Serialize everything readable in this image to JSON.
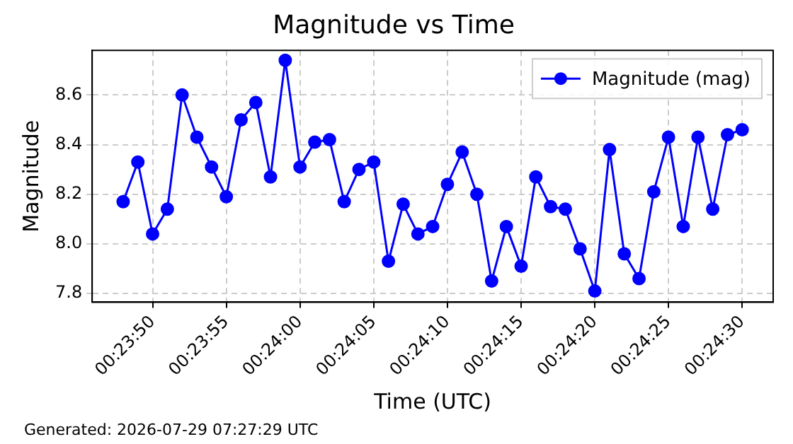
{
  "chart_data": {
    "type": "line",
    "title": "Magnitude vs Time",
    "xlabel": "Time (UTC)",
    "ylabel": "Magnitude",
    "annotations": [
      "Generated: 2026-07-29 07:27:29 UTC"
    ],
    "x": [
      0.396667,
      0.396944,
      0.397222,
      0.3975,
      0.397778,
      0.398056,
      0.398333,
      0.398611,
      0.398889,
      0.399167,
      0.399444,
      0.399722,
      0.4,
      0.400278,
      0.400556,
      0.400833,
      0.401111,
      0.401389,
      0.401667,
      0.401944,
      0.402222,
      0.4025,
      0.402778,
      0.403056,
      0.403333,
      0.403611,
      0.403889,
      0.404167,
      0.404444,
      0.404722,
      0.405,
      0.405278,
      0.405556,
      0.405833,
      0.406111,
      0.406389,
      0.406667,
      0.406944,
      0.407222,
      0.4075,
      0.407778,
      0.408056,
      0.408333
    ],
    "series": [
      {
        "name": "Magnitude (mag)",
        "color": "#0000ff",
        "values": [
          8.17,
          8.33,
          8.04,
          8.14,
          8.6,
          8.43,
          8.31,
          8.19,
          8.5,
          8.57,
          8.27,
          8.74,
          8.31,
          8.41,
          8.42,
          8.17,
          8.3,
          8.33,
          7.93,
          8.16,
          8.04,
          8.07,
          8.24,
          8.37,
          8.2,
          7.85,
          8.07,
          7.91,
          8.27,
          8.15,
          8.14,
          7.98,
          7.81,
          8.38,
          7.96,
          7.86,
          8.21,
          8.43,
          8.07,
          8.43,
          8.14,
          8.44,
          8.46
        ]
      }
    ],
    "xlim": [
      0.396083,
      0.408917
    ],
    "xticks": [
      {
        "value": 0.397222,
        "label": "00:23:50"
      },
      {
        "value": 0.398611,
        "label": "00:23:55"
      },
      {
        "value": 0.4,
        "label": "00:24:00"
      },
      {
        "value": 0.401389,
        "label": "00:24:05"
      },
      {
        "value": 0.402778,
        "label": "00:24:10"
      },
      {
        "value": 0.404167,
        "label": "00:24:15"
      },
      {
        "value": 0.405556,
        "label": "00:24:20"
      },
      {
        "value": 0.406944,
        "label": "00:24:25"
      },
      {
        "value": 0.408333,
        "label": "00:24:30"
      }
    ],
    "ylim": [
      7.765,
      8.78
    ],
    "yticks": [
      7.8,
      {
        "value": 8,
        "label": "8.0"
      },
      8.2,
      8.4,
      8.6
    ],
    "grid": true,
    "legend": "top right",
    "marker": "circle",
    "line_style": "solid"
  }
}
